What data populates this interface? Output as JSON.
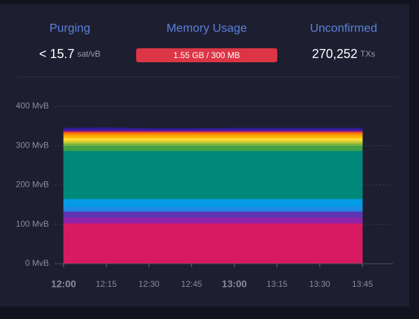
{
  "header": {
    "purging": {
      "title": "Purging",
      "value": "< 15.7",
      "unit": "sat/vB"
    },
    "memory": {
      "title": "Memory Usage",
      "label": "1.55 GB / 300 MB"
    },
    "unconfirmed": {
      "title": "Unconfirmed",
      "value": "270,252",
      "unit": "TXs"
    }
  },
  "chart_data": {
    "type": "area",
    "categories": [
      "12:00",
      "12:15",
      "12:30",
      "12:45",
      "13:00",
      "13:15",
      "13:30",
      "13:45"
    ],
    "ylim": [
      0,
      400
    ],
    "yticks": [
      {
        "value": 0,
        "label": "0 MvB"
      },
      {
        "value": 100,
        "label": "100 MvB"
      },
      {
        "value": 200,
        "label": "200 MvB"
      },
      {
        "value": 300,
        "label": "300 MvB"
      },
      {
        "value": 400,
        "label": "400 MvB"
      }
    ],
    "grid": true,
    "series": [
      {
        "color": "#d81b60",
        "values": [
          103,
          103,
          103,
          103,
          103,
          103,
          103,
          103
        ]
      },
      {
        "color": "#8e24aa",
        "values": [
          15,
          15,
          15,
          15,
          15,
          15,
          15,
          15
        ]
      },
      {
        "color": "#5e35b1",
        "values": [
          15,
          15,
          15,
          15,
          15,
          15,
          15,
          15
        ]
      },
      {
        "color": "#1e88e5",
        "values": [
          12,
          12,
          12,
          12,
          12,
          12,
          12,
          12
        ]
      },
      {
        "color": "#039be5",
        "values": [
          20,
          20,
          20,
          20,
          20,
          20,
          20,
          20
        ]
      },
      {
        "color": "#00897b",
        "values": [
          122,
          122,
          122,
          122,
          122,
          122,
          122,
          122
        ]
      },
      {
        "color": "#43a047",
        "values": [
          13,
          13,
          13,
          13,
          13,
          13,
          13,
          13
        ]
      },
      {
        "color": "#7cb342",
        "values": [
          6,
          6,
          6,
          6,
          6,
          6,
          6,
          6
        ]
      },
      {
        "color": "#c0ca33",
        "values": [
          6,
          6,
          6,
          6,
          6,
          6,
          6,
          6
        ]
      },
      {
        "color": "#fdd835",
        "values": [
          8,
          8,
          8,
          8,
          8,
          8,
          8,
          8
        ]
      },
      {
        "color": "#ffb300",
        "values": [
          7,
          7,
          7,
          7,
          7,
          7,
          7,
          7
        ]
      },
      {
        "color": "#fb8c00",
        "values": [
          5,
          5,
          5,
          5,
          5,
          5,
          5,
          5
        ]
      },
      {
        "color": "#f4511e",
        "values": [
          4,
          4,
          4,
          4,
          4,
          4,
          4,
          4
        ]
      },
      {
        "color": "#6a1b9a",
        "values": [
          4,
          5,
          4,
          4,
          4,
          4,
          4,
          4
        ]
      },
      {
        "color": "#311b92",
        "values": [
          5,
          5,
          4,
          4,
          5,
          5,
          5,
          5
        ]
      }
    ]
  }
}
